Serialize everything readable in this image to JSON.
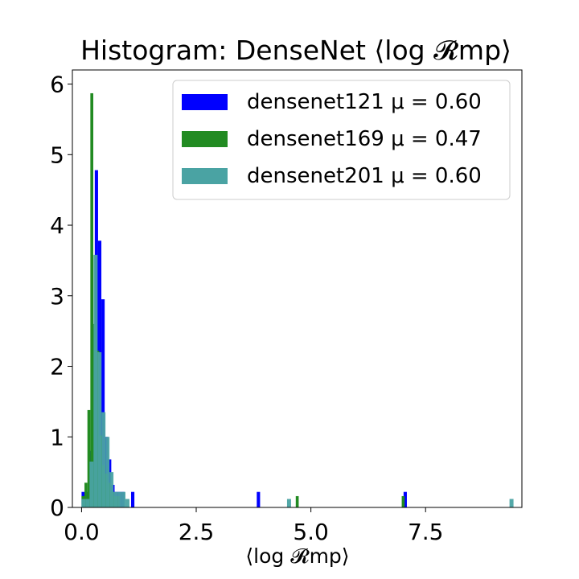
{
  "chart_data": {
    "type": "bar",
    "title": "Histogram: DenseNet ⟨log 𝓡mp⟩",
    "xlabel": "⟨log 𝓡mp⟩",
    "ylabel": "",
    "xlim": [
      -0.2,
      9.6
    ],
    "ylim": [
      0,
      6.2
    ],
    "xticks": [
      0.0,
      2.5,
      5.0,
      7.5
    ],
    "xtick_labels": [
      "0.0",
      "2.5",
      "5.0",
      "7.5"
    ],
    "yticks": [
      0,
      1,
      2,
      3,
      4,
      5,
      6
    ],
    "ytick_labels": [
      "0",
      "1",
      "2",
      "3",
      "4",
      "5",
      "6"
    ],
    "grid": false,
    "legend_position": "top-right",
    "series": [
      {
        "name": "densenet121 μ = 0.60",
        "color": "#0000ff",
        "bin_width": 0.072,
        "x": [
          0.0,
          0.072,
          0.144,
          0.216,
          0.288,
          0.36,
          0.432,
          0.504,
          0.576,
          0.648,
          0.72,
          0.792,
          0.864,
          1.08,
          3.82,
          7.02
        ],
        "values": [
          0.22,
          0.22,
          0.8,
          1.8,
          4.78,
          3.78,
          2.95,
          1.0,
          0.68,
          0.32,
          0.22,
          0.22,
          0.22,
          0.22,
          0.22,
          0.22
        ]
      },
      {
        "name": "densenet169 μ = 0.47",
        "color": "#228b22",
        "bin_width": 0.064,
        "x": [
          0.0,
          0.064,
          0.128,
          0.192,
          0.256,
          0.32,
          0.384,
          0.448,
          0.512,
          0.576,
          0.64,
          0.704,
          0.768,
          4.67,
          6.98
        ],
        "values": [
          0.16,
          0.35,
          1.38,
          5.87,
          2.6,
          2.22,
          1.02,
          0.6,
          0.48,
          0.35,
          0.22,
          0.16,
          0.16,
          0.16,
          0.16
        ]
      },
      {
        "name": "densenet201 μ = 0.60",
        "color": "#4aa3a3",
        "bin_width": 0.087,
        "x": [
          0.0,
          0.087,
          0.174,
          0.261,
          0.348,
          0.435,
          0.522,
          0.609,
          0.696,
          0.783,
          0.87,
          0.957,
          4.48,
          9.33
        ],
        "values": [
          0.12,
          0.12,
          0.65,
          3.58,
          2.2,
          1.35,
          1.0,
          0.5,
          0.22,
          0.22,
          0.22,
          0.12,
          0.12,
          0.12
        ]
      }
    ]
  }
}
